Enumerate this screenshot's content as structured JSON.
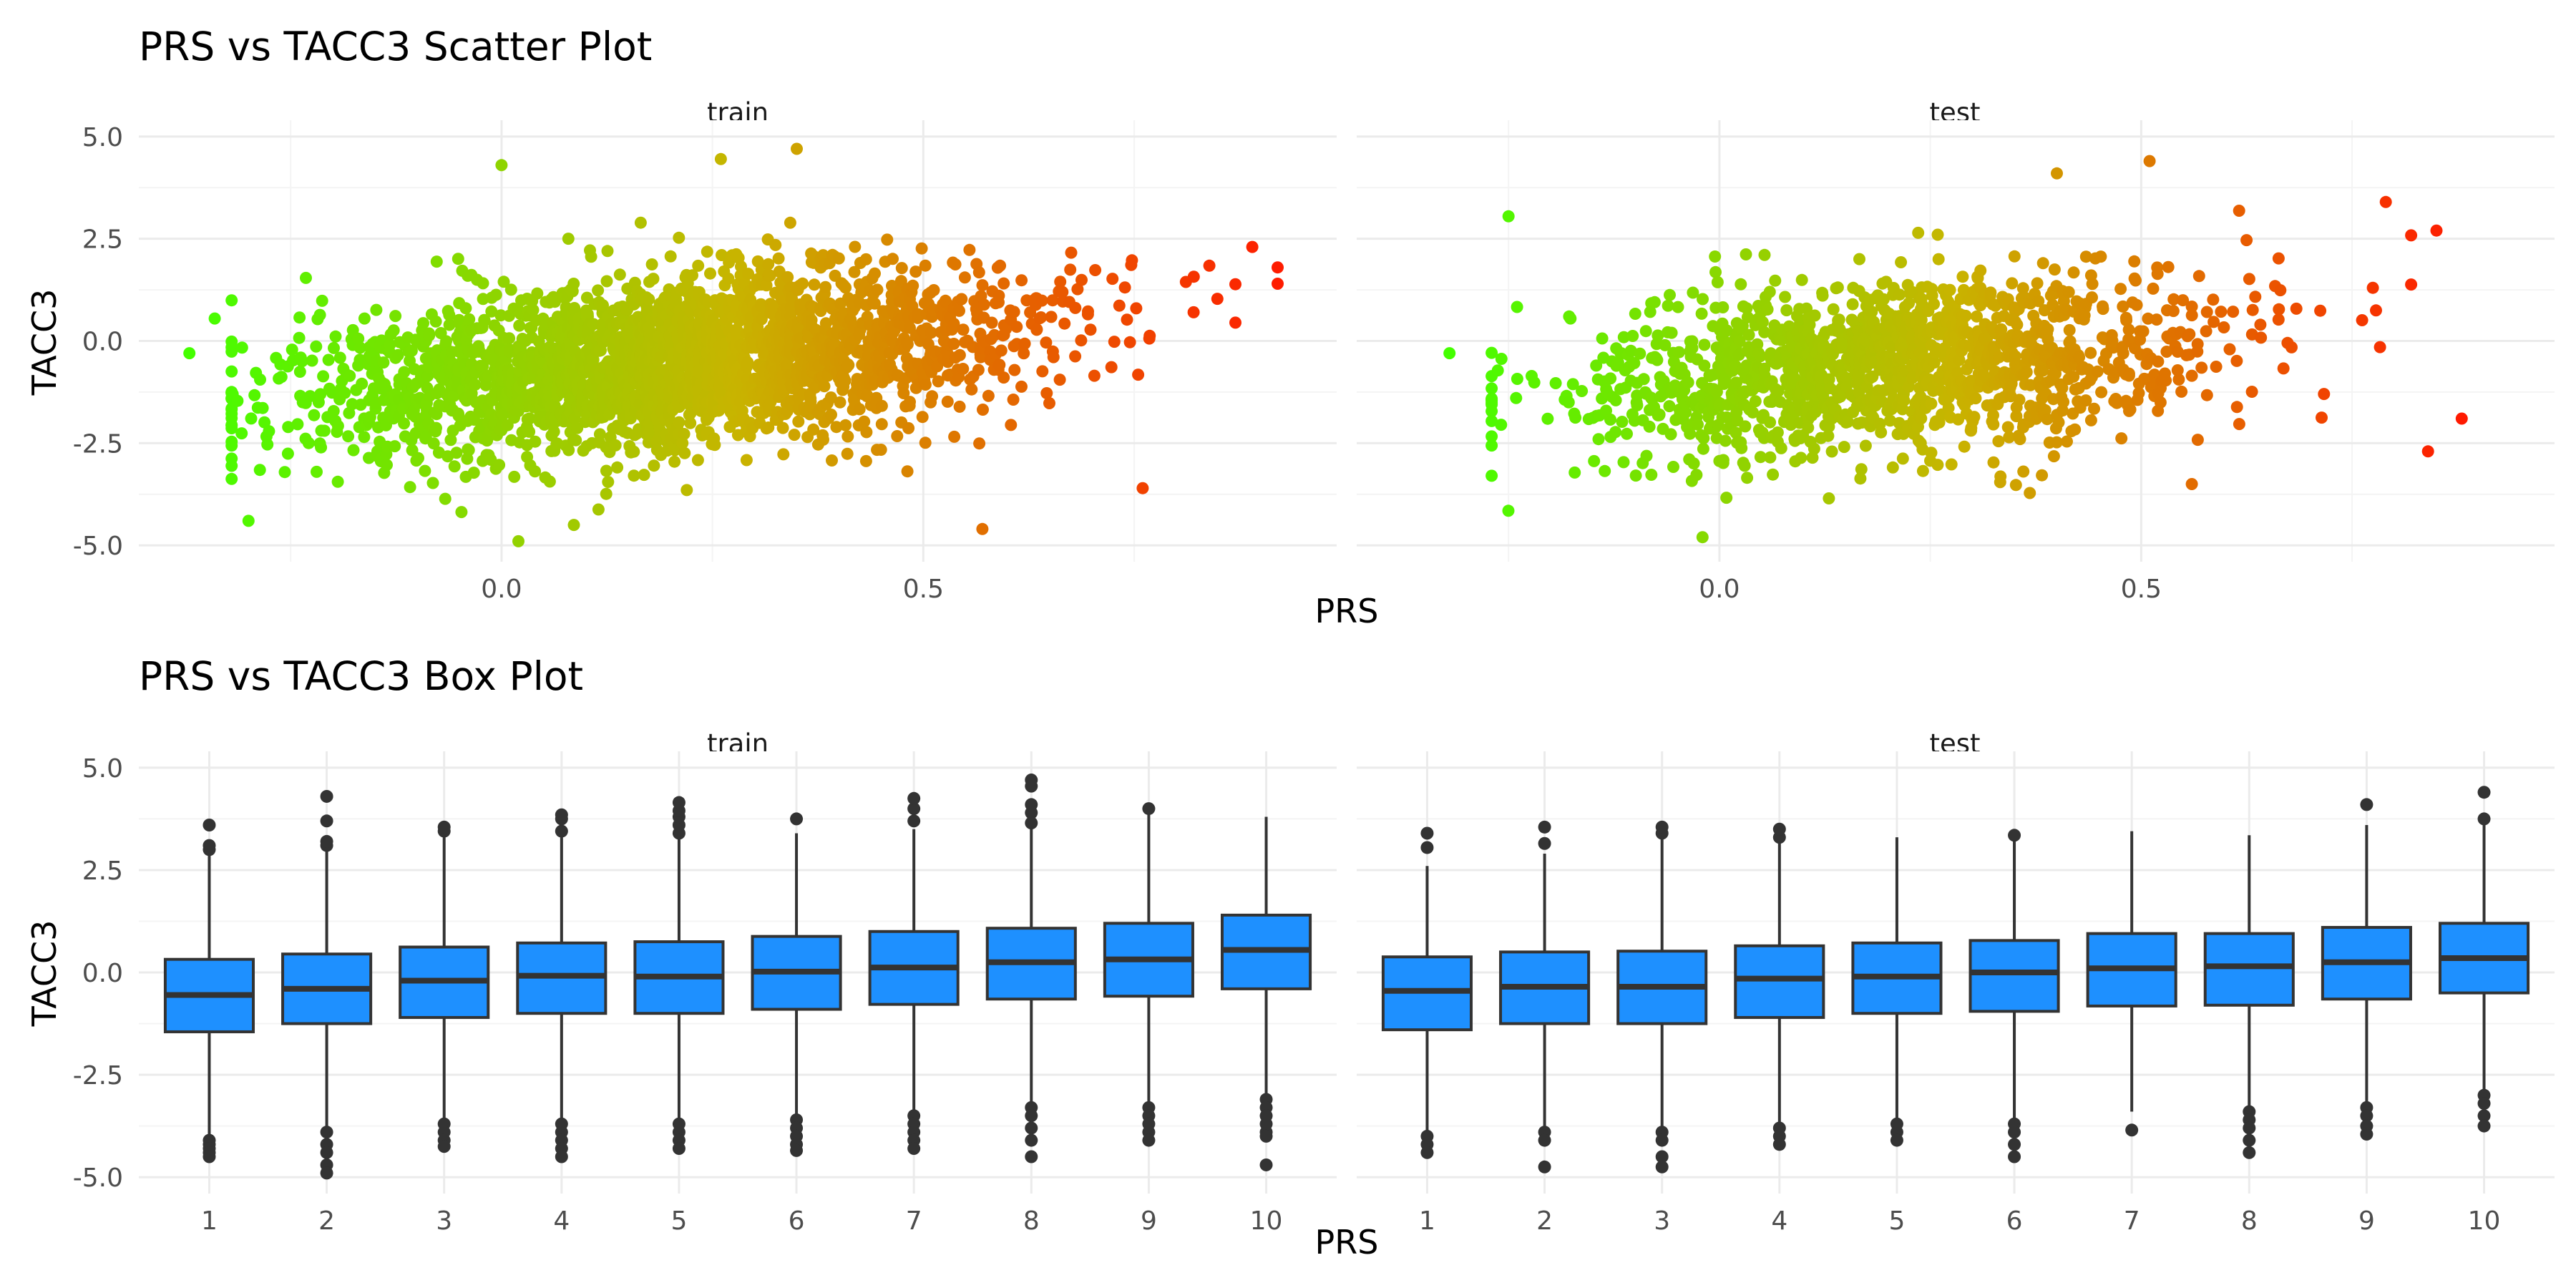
{
  "chart_data": [
    {
      "type": "scatter",
      "title": "PRS vs TACC3 Scatter Plot",
      "xlabel": "PRS",
      "ylabel": "TACC3",
      "xlim": [
        -0.43,
        0.99
      ],
      "ylim": [
        -5.4,
        5.4
      ],
      "x_ticks": [
        0.0,
        0.5
      ],
      "x_tick_labels": [
        "0.0",
        "0.5"
      ],
      "y_ticks": [
        -5,
        -2.5,
        0,
        2.5,
        5
      ],
      "y_tick_labels": [
        "-5.0",
        "-2.5",
        "0.0",
        "2.5",
        "5.0"
      ],
      "grid": true,
      "legend": "none",
      "color_gradient": {
        "low": "#44ff00",
        "mid": "#c8b400",
        "high": "#ff1a00"
      },
      "panels": [
        {
          "name": "train",
          "n_points": 2600,
          "x_range": [
            -0.37,
            0.93
          ],
          "y_range": [
            -4.9,
            4.7
          ],
          "slope_approx": 1.8,
          "outliers": [
            {
              "x": -0.37,
              "y": -0.3
            },
            {
              "x": -0.34,
              "y": 0.55
            },
            {
              "x": -0.3,
              "y": -4.4
            },
            {
              "x": 0.02,
              "y": -4.9
            },
            {
              "x": 0.0,
              "y": 4.3
            },
            {
              "x": 0.35,
              "y": 4.7
            },
            {
              "x": 0.26,
              "y": 4.45
            },
            {
              "x": 0.92,
              "y": 1.8
            },
            {
              "x": 0.92,
              "y": 1.4
            },
            {
              "x": 0.89,
              "y": 2.3
            },
            {
              "x": 0.57,
              "y": -4.6
            },
            {
              "x": 0.76,
              "y": -3.6
            }
          ]
        },
        {
          "name": "test",
          "n_points": 1500,
          "x_range": [
            -0.32,
            0.88
          ],
          "y_range": [
            -4.8,
            4.4
          ],
          "slope_approx": 1.6,
          "outliers": [
            {
              "x": -0.32,
              "y": -0.3
            },
            {
              "x": -0.25,
              "y": 3.05
            },
            {
              "x": 0.51,
              "y": 4.4
            },
            {
              "x": 0.79,
              "y": 3.4
            },
            {
              "x": 0.85,
              "y": 2.7
            },
            {
              "x": 0.88,
              "y": -1.9
            },
            {
              "x": 0.84,
              "y": -2.7
            },
            {
              "x": 0.56,
              "y": -3.5
            },
            {
              "x": -0.02,
              "y": -4.8
            },
            {
              "x": 0.4,
              "y": 4.1
            }
          ]
        }
      ]
    },
    {
      "type": "box",
      "title": "PRS vs TACC3 Box Plot",
      "xlabel": "PRS",
      "ylabel": "TACC3",
      "categories": [
        "1",
        "2",
        "3",
        "4",
        "5",
        "6",
        "7",
        "8",
        "9",
        "10"
      ],
      "ylim": [
        -5.4,
        5.4
      ],
      "y_ticks": [
        -5,
        -2.5,
        0,
        2.5,
        5
      ],
      "y_tick_labels": [
        "-5.0",
        "-2.5",
        "0.0",
        "2.5",
        "5.0"
      ],
      "grid": true,
      "legend": "none",
      "box_fill": "#1e90ff",
      "panels": [
        {
          "name": "train",
          "boxes": [
            {
              "q1": -1.45,
              "median": -0.55,
              "q3": 0.32,
              "whisker_low": -4.0,
              "whisker_high": 2.9,
              "outliers": [
                3.0,
                3.1,
                3.6,
                -4.1,
                -4.2,
                -4.3,
                -4.4,
                -4.5
              ]
            },
            {
              "q1": -1.25,
              "median": -0.4,
              "q3": 0.45,
              "whisker_low": -3.8,
              "whisker_high": 3.0,
              "outliers": [
                3.1,
                3.2,
                3.7,
                4.3,
                -3.9,
                -4.2,
                -4.4,
                -4.7,
                -4.9
              ]
            },
            {
              "q1": -1.1,
              "median": -0.2,
              "q3": 0.62,
              "whisker_low": -3.6,
              "whisker_high": 3.3,
              "outliers": [
                3.45,
                3.55,
                -3.7,
                -3.9,
                -4.1,
                -4.25
              ]
            },
            {
              "q1": -1.0,
              "median": -0.08,
              "q3": 0.72,
              "whisker_low": -3.6,
              "whisker_high": 3.3,
              "outliers": [
                3.45,
                3.75,
                3.85,
                -3.7,
                -3.9,
                -4.1,
                -4.3,
                -4.5
              ]
            },
            {
              "q1": -1.0,
              "median": -0.1,
              "q3": 0.75,
              "whisker_low": -3.6,
              "whisker_high": 3.3,
              "outliers": [
                3.4,
                3.6,
                3.8,
                3.95,
                4.15,
                -3.7,
                -3.9,
                -4.1,
                -4.3
              ]
            },
            {
              "q1": -0.9,
              "median": 0.02,
              "q3": 0.88,
              "whisker_low": -3.5,
              "whisker_high": 3.4,
              "outliers": [
                3.75,
                -3.6,
                -3.8,
                -4.0,
                -4.2,
                -4.35
              ]
            },
            {
              "q1": -0.78,
              "median": 0.12,
              "q3": 1.0,
              "whisker_low": -3.4,
              "whisker_high": 3.5,
              "outliers": [
                3.7,
                4.0,
                4.25,
                -3.5,
                -3.7,
                -3.9,
                -4.1,
                -4.3
              ]
            },
            {
              "q1": -0.65,
              "median": 0.25,
              "q3": 1.08,
              "whisker_low": -3.2,
              "whisker_high": 3.5,
              "outliers": [
                3.65,
                3.9,
                4.1,
                4.55,
                4.7,
                -3.3,
                -3.5,
                -3.8,
                -4.1,
                -4.5
              ]
            },
            {
              "q1": -0.58,
              "median": 0.32,
              "q3": 1.2,
              "whisker_low": -3.2,
              "whisker_high": 3.9,
              "outliers": [
                4.0,
                -3.3,
                -3.5,
                -3.7,
                -3.9,
                -4.1
              ]
            },
            {
              "q1": -0.4,
              "median": 0.55,
              "q3": 1.4,
              "whisker_low": -3.0,
              "whisker_high": 3.8,
              "outliers": [
                -3.1,
                -3.3,
                -3.5,
                -3.7,
                -3.9,
                -4.0,
                -4.7
              ]
            }
          ]
        },
        {
          "name": "test",
          "boxes": [
            {
              "q1": -1.4,
              "median": -0.45,
              "q3": 0.38,
              "whisker_low": -3.9,
              "whisker_high": 2.6,
              "outliers": [
                3.05,
                3.4,
                -4.0,
                -4.2,
                -4.4
              ]
            },
            {
              "q1": -1.25,
              "median": -0.35,
              "q3": 0.5,
              "whisker_low": -3.8,
              "whisker_high": 2.9,
              "outliers": [
                3.15,
                3.55,
                -3.9,
                -4.1,
                -4.75
              ]
            },
            {
              "q1": -1.25,
              "median": -0.35,
              "q3": 0.52,
              "whisker_low": -3.8,
              "whisker_high": 3.3,
              "outliers": [
                3.4,
                3.55,
                -3.9,
                -4.1,
                -4.5,
                -4.75
              ]
            },
            {
              "q1": -1.1,
              "median": -0.15,
              "q3": 0.65,
              "whisker_low": -3.7,
              "whisker_high": 3.2,
              "outliers": [
                3.3,
                3.5,
                -3.8,
                -4.0,
                -4.2
              ]
            },
            {
              "q1": -1.0,
              "median": -0.1,
              "q3": 0.72,
              "whisker_low": -3.6,
              "whisker_high": 3.3,
              "outliers": [
                -3.7,
                -3.9,
                -4.1
              ]
            },
            {
              "q1": -0.95,
              "median": 0.0,
              "q3": 0.78,
              "whisker_low": -3.6,
              "whisker_high": 3.2,
              "outliers": [
                3.35,
                -3.7,
                -3.9,
                -4.2,
                -4.5
              ]
            },
            {
              "q1": -0.82,
              "median": 0.1,
              "q3": 0.95,
              "whisker_low": -3.4,
              "whisker_high": 3.45,
              "outliers": [
                -3.85
              ]
            },
            {
              "q1": -0.8,
              "median": 0.15,
              "q3": 0.95,
              "whisker_low": -3.3,
              "whisker_high": 3.35,
              "outliers": [
                -3.4,
                -3.6,
                -3.8,
                -4.1,
                -4.4
              ]
            },
            {
              "q1": -0.65,
              "median": 0.25,
              "q3": 1.1,
              "whisker_low": -3.2,
              "whisker_high": 3.6,
              "outliers": [
                4.1,
                -3.3,
                -3.5,
                -3.75,
                -3.95
              ]
            },
            {
              "q1": -0.5,
              "median": 0.35,
              "q3": 1.2,
              "whisker_low": -2.9,
              "whisker_high": 3.6,
              "outliers": [
                3.75,
                4.4,
                -3.0,
                -3.2,
                -3.5,
                -3.75
              ]
            }
          ]
        }
      ]
    }
  ]
}
